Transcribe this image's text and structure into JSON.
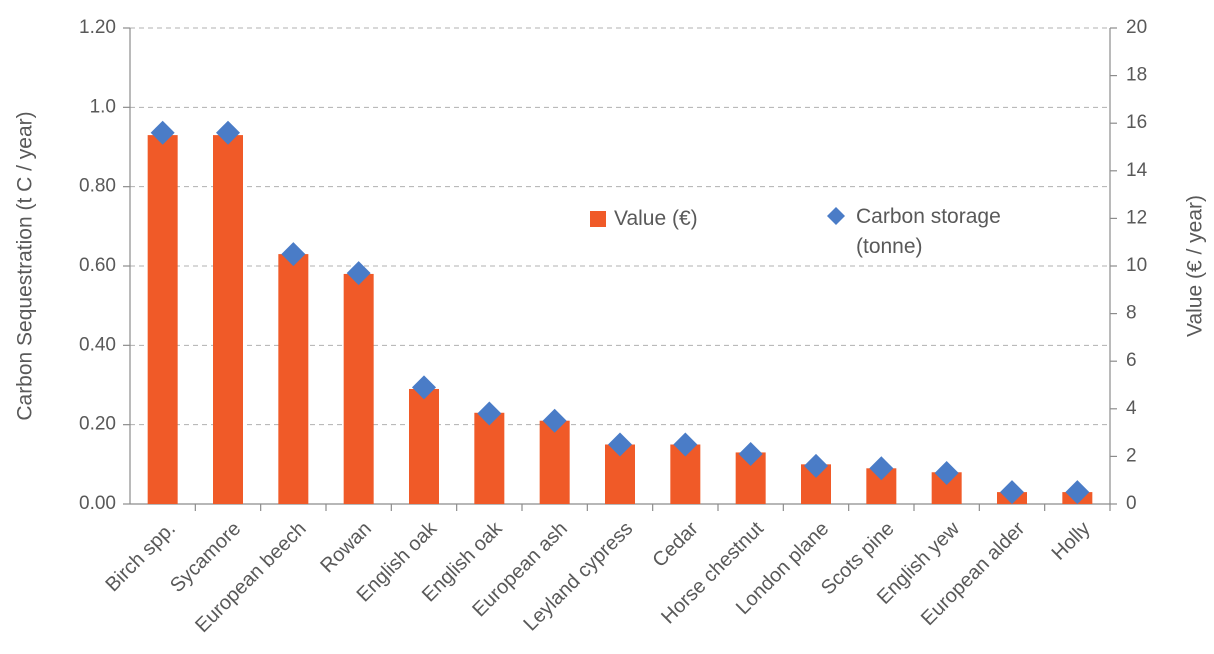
{
  "chart_data": {
    "type": "bar",
    "y_label": "Carbon Sequestration (t C / year)",
    "y2_label": "Value (€ / year)",
    "categories": [
      "Birch spp.",
      "Sycamore",
      "European beech",
      "Rowan",
      "English oak",
      "English oak",
      "European ash",
      "Leyland cypress",
      "Cedar",
      "Horse chestnut",
      "London plane",
      "Scots pine",
      "English yew",
      "European alder",
      "Holly"
    ],
    "series": [
      {
        "name": "Value (€)",
        "type": "bar",
        "color": "#f05a28",
        "values": [
          0.93,
          0.93,
          0.63,
          0.58,
          0.29,
          0.23,
          0.21,
          0.15,
          0.15,
          0.13,
          0.1,
          0.09,
          0.08,
          0.03,
          0.03
        ]
      },
      {
        "name": "Carbon storage (tonne)",
        "type": "scatter",
        "axis": "y2",
        "color": "#4a7cc7",
        "values": [
          15.6,
          15.6,
          10.5,
          9.7,
          4.9,
          3.8,
          3.5,
          2.5,
          2.5,
          2.1,
          1.6,
          1.5,
          1.3,
          0.5,
          0.5
        ]
      }
    ],
    "ylim": [
      0,
      1.2
    ],
    "yticks": [
      {
        "value": 0,
        "label": "0.00"
      },
      {
        "value": 0.2,
        "label": "0.20"
      },
      {
        "value": 0.4,
        "label": "0.40"
      },
      {
        "value": 0.6,
        "label": "0.60"
      },
      {
        "value": 0.8,
        "label": "0.80"
      },
      {
        "value": 1.0,
        "label": "1.0"
      },
      {
        "value": 1.2,
        "label": "1.20"
      }
    ],
    "y2lim": [
      0,
      20
    ],
    "y2ticks": [
      0,
      2,
      4,
      6,
      8,
      10,
      12,
      14,
      16,
      18,
      20
    ],
    "grid": true
  }
}
